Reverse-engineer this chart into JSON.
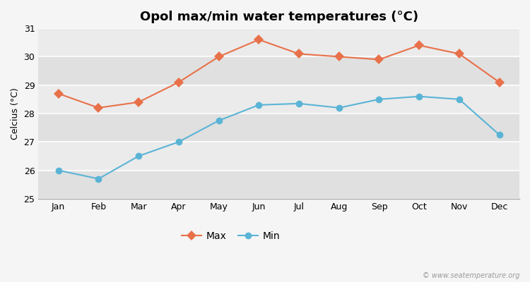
{
  "title": "Opol max/min water temperatures (°C)",
  "ylabel": "Celcius (°C)",
  "months": [
    "Jan",
    "Feb",
    "Mar",
    "Apr",
    "May",
    "Jun",
    "Jul",
    "Aug",
    "Sep",
    "Oct",
    "Nov",
    "Dec"
  ],
  "max_values": [
    28.7,
    28.2,
    28.4,
    29.1,
    30.0,
    30.6,
    30.1,
    30.0,
    29.9,
    30.4,
    30.1,
    29.1
  ],
  "min_values": [
    26.0,
    25.7,
    26.5,
    27.0,
    27.75,
    28.3,
    28.35,
    28.2,
    28.5,
    28.6,
    28.5,
    27.25
  ],
  "max_color": "#e8714a",
  "min_color": "#5ab4d6",
  "fig_bg_color": "#f5f5f5",
  "plot_bg_color": "#e8e8e8",
  "band_color_light": "#ebebeb",
  "band_color_dark": "#e0e0e0",
  "grid_color": "#ffffff",
  "ylim": [
    25,
    31
  ],
  "yticks": [
    25,
    26,
    27,
    28,
    29,
    30,
    31
  ],
  "legend_labels": [
    "Max",
    "Min"
  ],
  "watermark": "© www.seatemperature.org",
  "title_fontsize": 13,
  "axis_label_fontsize": 9,
  "tick_fontsize": 9,
  "legend_fontsize": 10
}
